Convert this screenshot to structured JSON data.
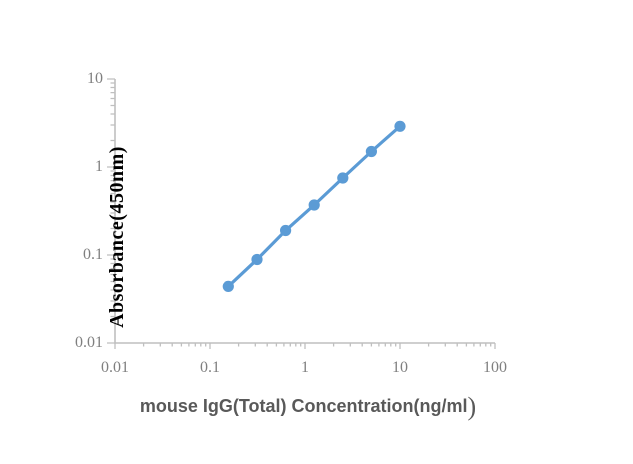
{
  "chart_data": {
    "type": "line",
    "title": "",
    "xlabel": "mouse IgG(Total) Concentration(ng/ml)",
    "ylabel": "Absorbance(450nm)",
    "x_scale": "log",
    "y_scale": "log",
    "xlim": [
      0.01,
      100
    ],
    "ylim": [
      0.01,
      10
    ],
    "grid": false,
    "legend": false,
    "x_ticks": [
      {
        "value": 0.01,
        "label": "0.01"
      },
      {
        "value": 0.1,
        "label": "0.1"
      },
      {
        "value": 1,
        "label": "1"
      },
      {
        "value": 10,
        "label": "10"
      },
      {
        "value": 100,
        "label": "100"
      }
    ],
    "y_ticks": [
      {
        "value": 0.01,
        "label": "0.01"
      },
      {
        "value": 0.1,
        "label": "0.1"
      },
      {
        "value": 1,
        "label": "1"
      },
      {
        "value": 10,
        "label": "10"
      }
    ],
    "series": [
      {
        "x": [
          0.156,
          0.3125,
          0.625,
          1.25,
          2.5,
          5,
          10
        ],
        "y": [
          0.044,
          0.089,
          0.19,
          0.37,
          0.75,
          1.5,
          2.9
        ],
        "marker": "circle"
      }
    ],
    "colors": {
      "series": "#5B9BD5",
      "axis": "#BFBFBF",
      "tick_label": "#7F7F7F",
      "x_title": "#595959",
      "y_title": "#000000"
    }
  }
}
